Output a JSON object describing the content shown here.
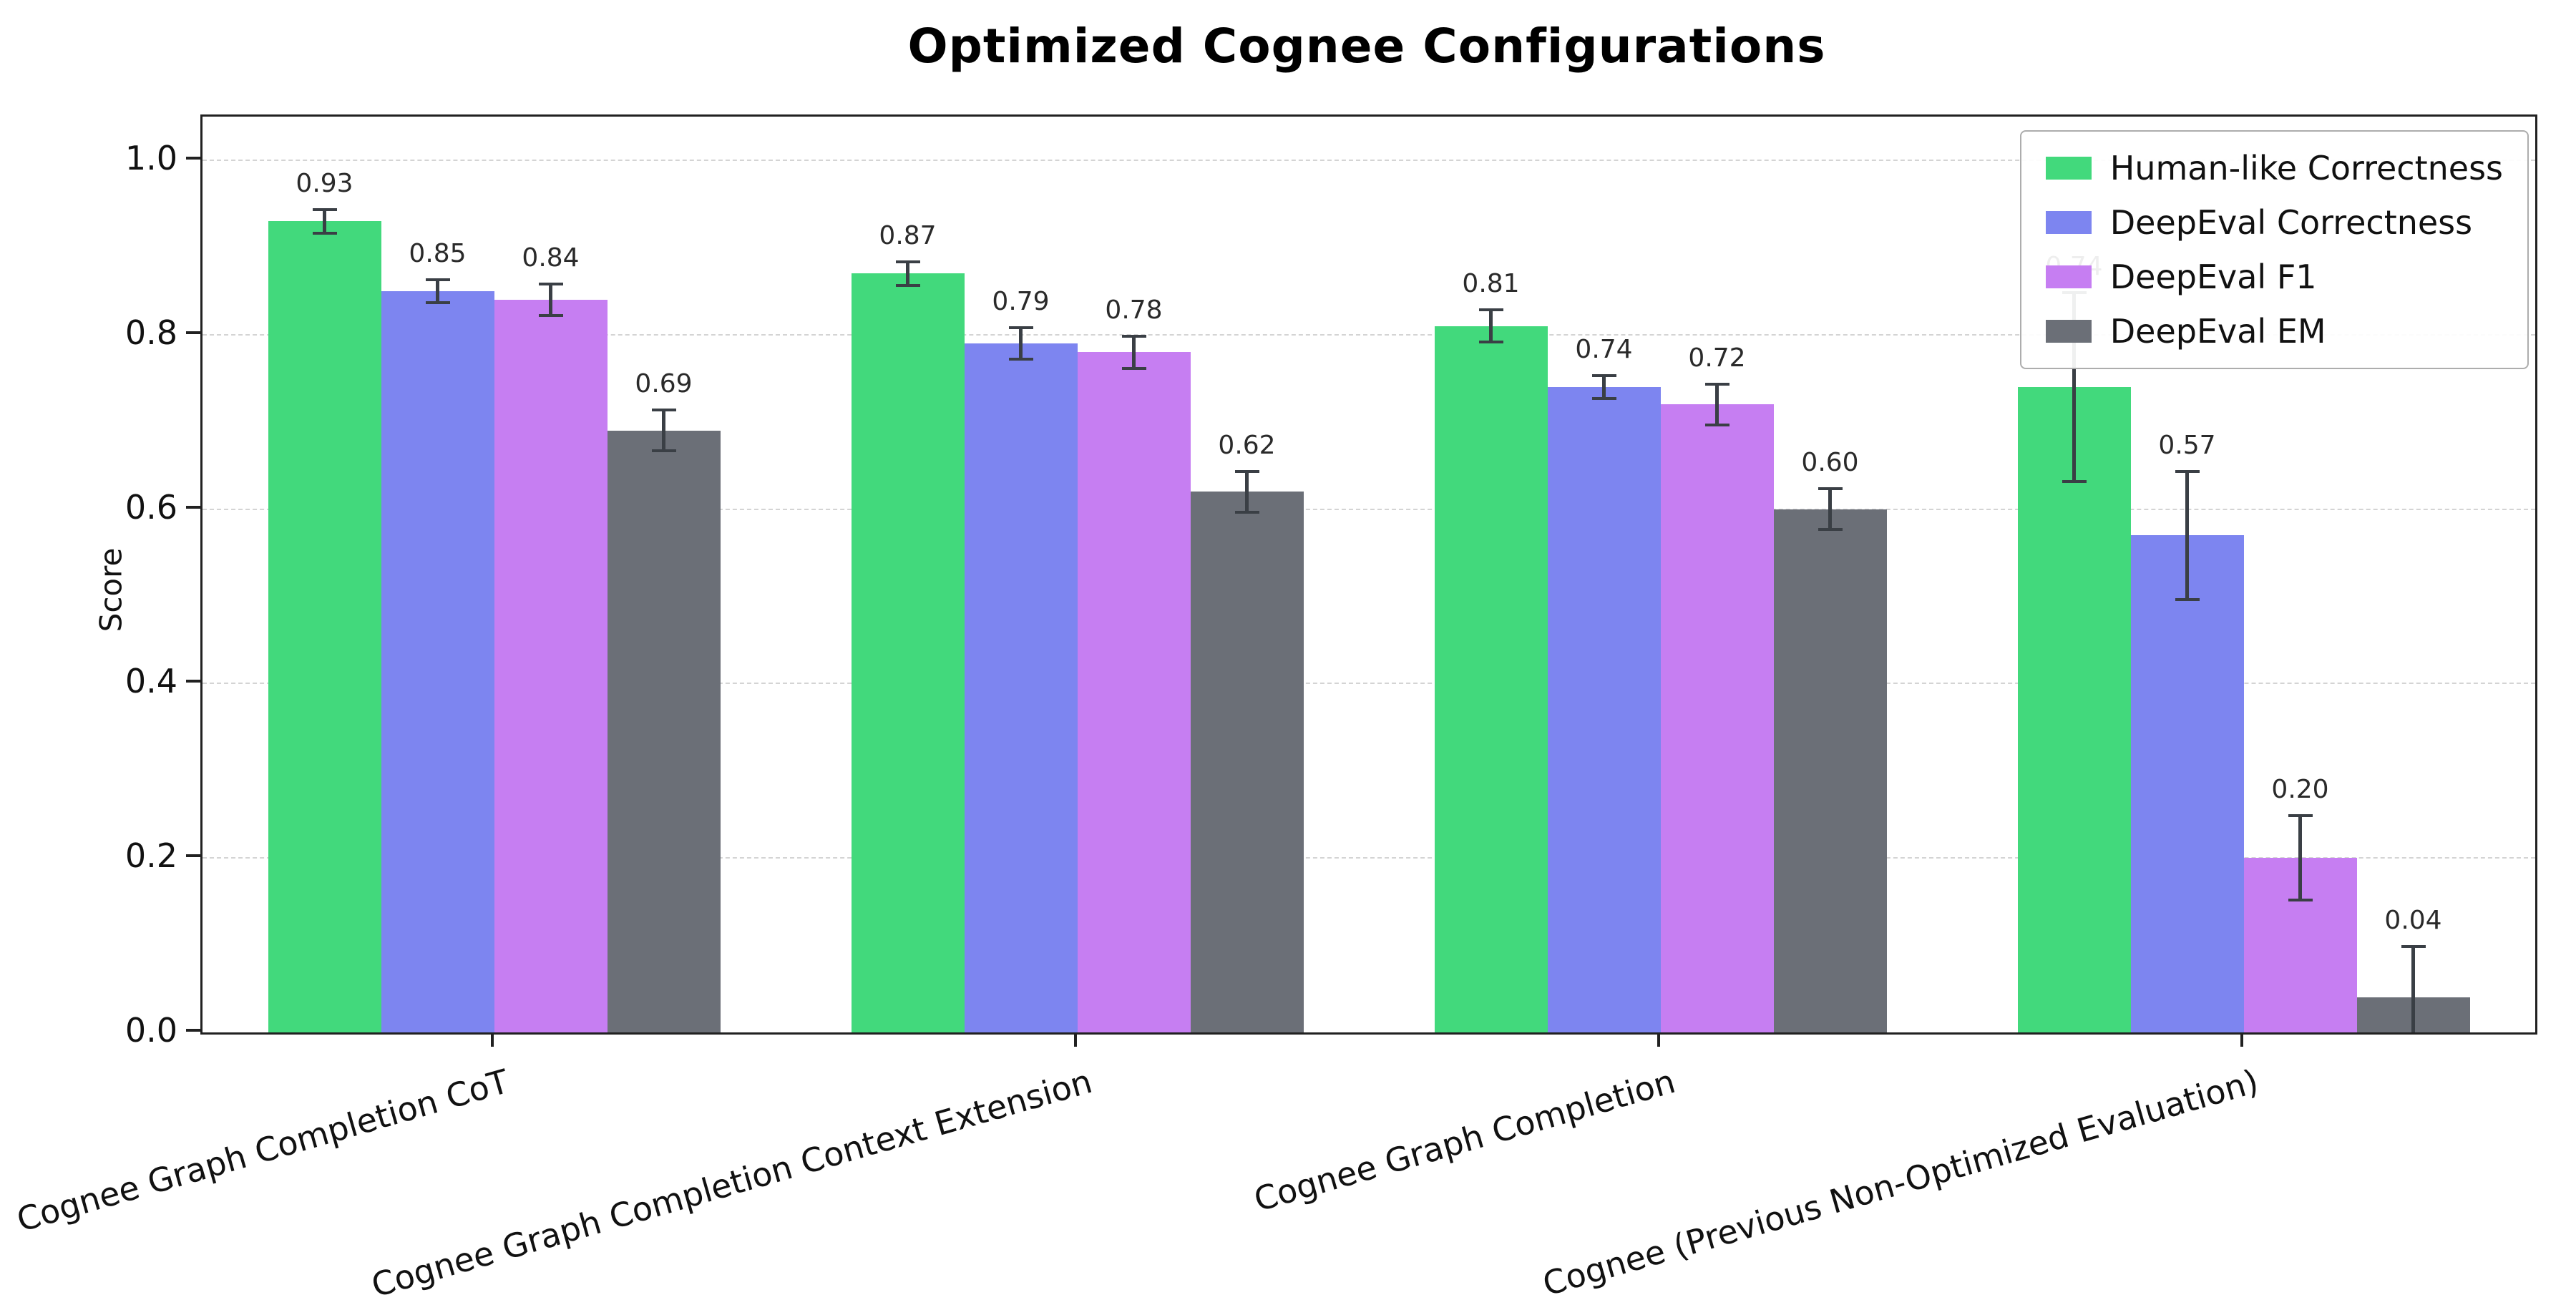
{
  "chart_data": {
    "type": "bar",
    "title": "Optimized Cognee Configurations",
    "xlabel": "",
    "ylabel": "Score",
    "ylim": [
      0,
      1.05
    ],
    "yticks": [
      0.0,
      0.2,
      0.4,
      0.6,
      0.8,
      1.0
    ],
    "grid": "horizontal-dashed",
    "legend_position": "upper-right",
    "error_bars": true,
    "bar_value_labels": true,
    "categories": [
      "Cognee Graph Completion CoT",
      "Cognee Graph Completion Context Extension",
      "Cognee Graph Completion",
      "Cognee (Previous Non-Optimized Evaluation)"
    ],
    "series": [
      {
        "name": "Human-like Correctness",
        "color": "#42d97c",
        "values": [
          0.93,
          0.87,
          0.81,
          0.74
        ],
        "errors": [
          0.015,
          0.015,
          0.02,
          0.11
        ]
      },
      {
        "name": "DeepEval Correctness",
        "color": "#7d85f0",
        "values": [
          0.85,
          0.79,
          0.74,
          0.57
        ],
        "errors": [
          0.015,
          0.02,
          0.015,
          0.075
        ]
      },
      {
        "name": "DeepEval F1",
        "color": "#c67ef2",
        "values": [
          0.84,
          0.78,
          0.72,
          0.2
        ],
        "errors": [
          0.02,
          0.02,
          0.025,
          0.05
        ]
      },
      {
        "name": "DeepEval EM",
        "color": "#6b6f77",
        "values": [
          0.69,
          0.62,
          0.6,
          0.04
        ],
        "errors": [
          0.025,
          0.025,
          0.025,
          0.06
        ]
      }
    ],
    "colors": {
      "error_bar": "#3a3f45",
      "grid": "#d4d4d4",
      "spine": "#212121"
    }
  }
}
